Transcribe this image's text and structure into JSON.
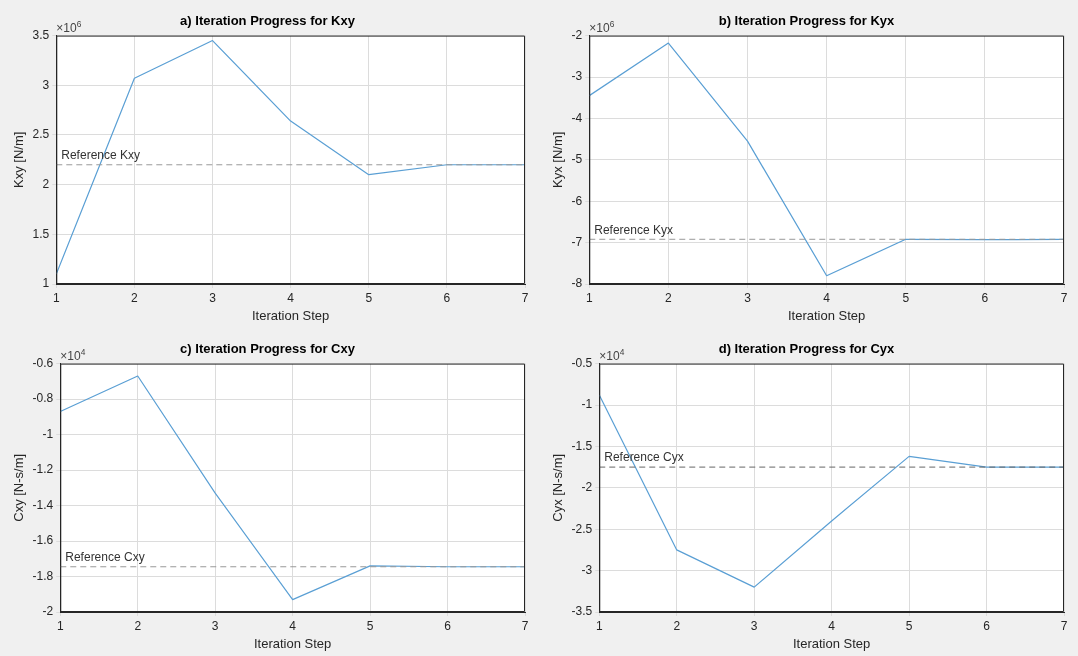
{
  "chart_data": [
    {
      "type": "line",
      "title": "a) Iteration Progress for Kxy",
      "xlabel": "Iteration Step",
      "ylabel": "Kxy [N/m]",
      "annotations": [
        "×10$^{6}$"
      ],
      "x": [
        1,
        2,
        3,
        4,
        5,
        6,
        7
      ],
      "series": [
        {
          "color": "#5a9fd4",
          "values": [
            1.1,
            3.07,
            3.45,
            2.64,
            2.1,
            2.2,
            2.2
          ]
        }
      ],
      "xlim": [
        1,
        7
      ],
      "xticks": [
        1,
        2,
        3,
        4,
        5,
        6,
        7
      ],
      "ylim": [
        1,
        3.5
      ],
      "yticks": [
        1,
        1.5,
        2,
        2.5,
        3,
        3.5
      ],
      "ref_lines": [
        {
          "axis": "y",
          "value": 2.2,
          "label": "Reference Kxy",
          "color": "#999999",
          "line_style": "dashed"
        }
      ],
      "grid": true,
      "legend": false,
      "marker": "none",
      "line_style": "solid"
    },
    {
      "type": "line",
      "title": "b) Iteration Progress for Kyx",
      "xlabel": "Iteration Step",
      "ylabel": "Kyx [N/m]",
      "annotations": [
        "×10$^{6}$"
      ],
      "x": [
        1,
        2,
        3,
        4,
        5,
        6,
        7
      ],
      "series": [
        {
          "color": "#5a9fd4",
          "values": [
            -3.45,
            -2.18,
            -4.55,
            -7.8,
            -6.92,
            -6.93,
            -6.92
          ]
        }
      ],
      "xlim": [
        1,
        7
      ],
      "xticks": [
        1,
        2,
        3,
        4,
        5,
        6,
        7
      ],
      "ylim": [
        -8,
        -2
      ],
      "yticks": [
        -8,
        -7,
        -6,
        -5,
        -4,
        -3,
        -2
      ],
      "ref_lines": [
        {
          "axis": "y",
          "value": -6.92,
          "label": "Reference Kyx",
          "color": "#999999",
          "line_style": "dashed"
        }
      ],
      "grid": true,
      "legend": false,
      "marker": "none",
      "line_style": "solid"
    },
    {
      "type": "line",
      "title": "c) Iteration Progress for Cxy",
      "xlabel": "Iteration Step",
      "ylabel": "Cxy [N-s/m]",
      "annotations": [
        "×10$^{4}$"
      ],
      "x": [
        1,
        2,
        3,
        4,
        5,
        6,
        7
      ],
      "series": [
        {
          "color": "#5a9fd4",
          "values": [
            -0.87,
            -0.67,
            -1.33,
            -1.93,
            -1.74,
            -1.745,
            -1.745
          ]
        }
      ],
      "xlim": [
        1,
        7
      ],
      "xticks": [
        1,
        2,
        3,
        4,
        5,
        6,
        7
      ],
      "ylim": [
        -2,
        -0.6
      ],
      "yticks": [
        -2,
        -1.8,
        -1.6,
        -1.4,
        -1.2,
        -1,
        -0.8,
        -0.6
      ],
      "ref_lines": [
        {
          "axis": "y",
          "value": -1.745,
          "label": "Reference Cxy",
          "color": "#999999",
          "line_style": "dashed"
        }
      ],
      "grid": true,
      "legend": false,
      "marker": "none",
      "line_style": "solid"
    },
    {
      "type": "line",
      "title": "d) Iteration Progress for Cyx",
      "xlabel": "Iteration Step",
      "ylabel": "Cyx [N-s/m]",
      "annotations": [
        "×10$^{4}$"
      ],
      "x": [
        1,
        2,
        3,
        4,
        5,
        6,
        7
      ],
      "series": [
        {
          "color": "#5a9fd4",
          "values": [
            -0.88,
            -2.75,
            -3.2,
            -2.4,
            -1.62,
            -1.75,
            -1.75
          ]
        }
      ],
      "xlim": [
        1,
        7
      ],
      "xticks": [
        1,
        2,
        3,
        4,
        5,
        6,
        7
      ],
      "ylim": [
        -3.5,
        -0.5
      ],
      "yticks": [
        -3.5,
        -3,
        -2.5,
        -2,
        -1.5,
        -1,
        -0.5
      ],
      "ref_lines": [
        {
          "axis": "y",
          "value": -1.75,
          "label": "Reference Cyx",
          "color": "#666666",
          "line_style": "dashed"
        }
      ],
      "grid": true,
      "legend": false,
      "marker": "none",
      "line_style": "solid"
    }
  ]
}
